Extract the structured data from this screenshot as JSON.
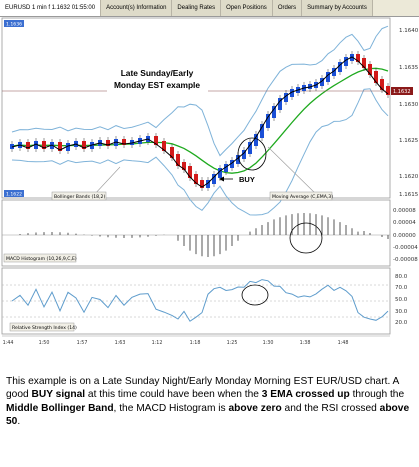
{
  "window": {
    "title": "EURUSD 1 min f 1.1632 01:55:00",
    "tabs": [
      "Account(s) Information",
      "Dealing Rates",
      "Open Positions",
      "Orders",
      "Summary by Accounts"
    ]
  },
  "price_pane": {
    "badge": "1.1636",
    "bottom_badge": "1.1622",
    "price_tag": "1.1632",
    "annotation_line1": "Late Sunday/Early",
    "annotation_line2": "Monday EST example",
    "buy_label": "BUY",
    "bb_label": "Bollinger Bands (18,2)",
    "ma_label": "Moving Average (C,EMA,3)",
    "y_ticks": [
      "1.1640",
      "1.1635",
      "1.1630",
      "1.1625",
      "1.1620",
      "1.1615"
    ]
  },
  "macd_pane": {
    "label": "MACD Histogram (10,26,9,C,E)",
    "y_ticks": [
      "0.00008",
      "0.00004",
      "0.00000",
      "-0.00004",
      "-0.00008"
    ]
  },
  "rsi_pane": {
    "label": "Relative Strength Index (14)",
    "y_ticks": [
      "80.0",
      "70.0",
      "50.0",
      "30.0",
      "20.0"
    ]
  },
  "x_axis": {
    "ticks": [
      "1:44",
      "1:50",
      "1:57",
      "1:63",
      "1:12",
      "1:18",
      "1:25",
      "1:30",
      "1:38",
      "1:48"
    ]
  },
  "caption": {
    "p1": "This example is on a Late Sunday Night/Early Monday Morning EST EUR/USD chart. A good ",
    "b1": "BUY signal",
    "p2": " at this time could have been when the ",
    "b2": "3 EMA crossed up",
    "p3": " through the ",
    "b3": "Middle Bollinger Band",
    "p4": ", the MACD Histogram is ",
    "b4": "above zero",
    "p5": " and the RSI crossed ",
    "b5": "above 50",
    "p6": "."
  },
  "colors": {
    "bull": "#1a4fd6",
    "bear": "#d11a1a",
    "ema": "#000000",
    "middle_band": "#1faa1f",
    "bands": "#7fb3d9",
    "rsi_line": "#5e9ccc"
  }
}
